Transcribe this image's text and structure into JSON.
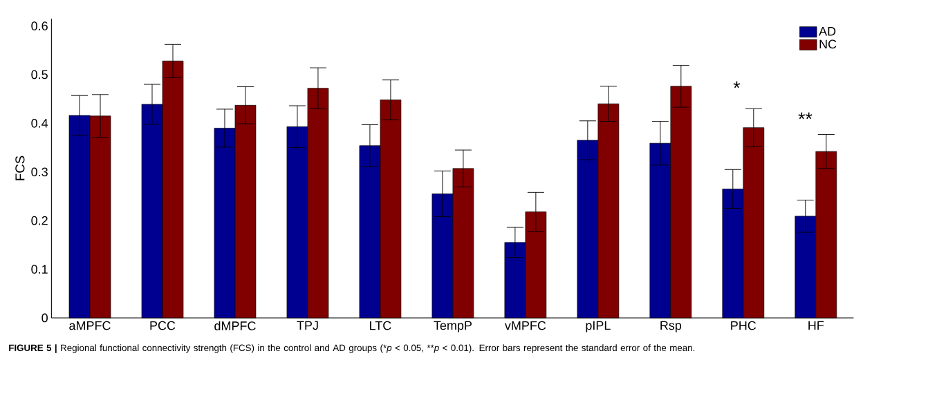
{
  "chart_data": {
    "type": "bar",
    "ylabel": "FCS",
    "categories": [
      "aMPFC",
      "PCC",
      "dMPFC",
      "TPJ",
      "LTC",
      "TempP",
      "vMPFC",
      "pIPL",
      "Rsp",
      "PHC",
      "HF"
    ],
    "series": [
      {
        "name": "AD",
        "color": "#000090",
        "values": [
          0.416,
          0.439,
          0.39,
          0.393,
          0.354,
          0.255,
          0.155,
          0.365,
          0.359,
          0.265,
          0.209
        ],
        "errors": [
          0.041,
          0.041,
          0.039,
          0.043,
          0.043,
          0.047,
          0.031,
          0.04,
          0.045,
          0.04,
          0.033
        ]
      },
      {
        "name": "NC",
        "color": "#800000",
        "values": [
          0.415,
          0.528,
          0.437,
          0.472,
          0.448,
          0.307,
          0.218,
          0.44,
          0.476,
          0.391,
          0.342
        ],
        "errors": [
          0.044,
          0.034,
          0.038,
          0.042,
          0.041,
          0.038,
          0.04,
          0.036,
          0.043,
          0.039,
          0.035
        ]
      }
    ],
    "ylim": [
      0,
      0.615
    ],
    "yticks": [
      0,
      0.1,
      0.2,
      0.3,
      0.4,
      0.5,
      0.6
    ],
    "legend": "top right",
    "grid": false,
    "annotations": [
      "*",
      "**",
      "**FIGURE 5 |** Regional functional connectivity strength (FCS) in the control and AD groups (",
      "*",
      "*p* < 0.05, ",
      "**",
      "*p* < 0.01). Error bars represent the standard error of the mean."
    ]
  }
}
